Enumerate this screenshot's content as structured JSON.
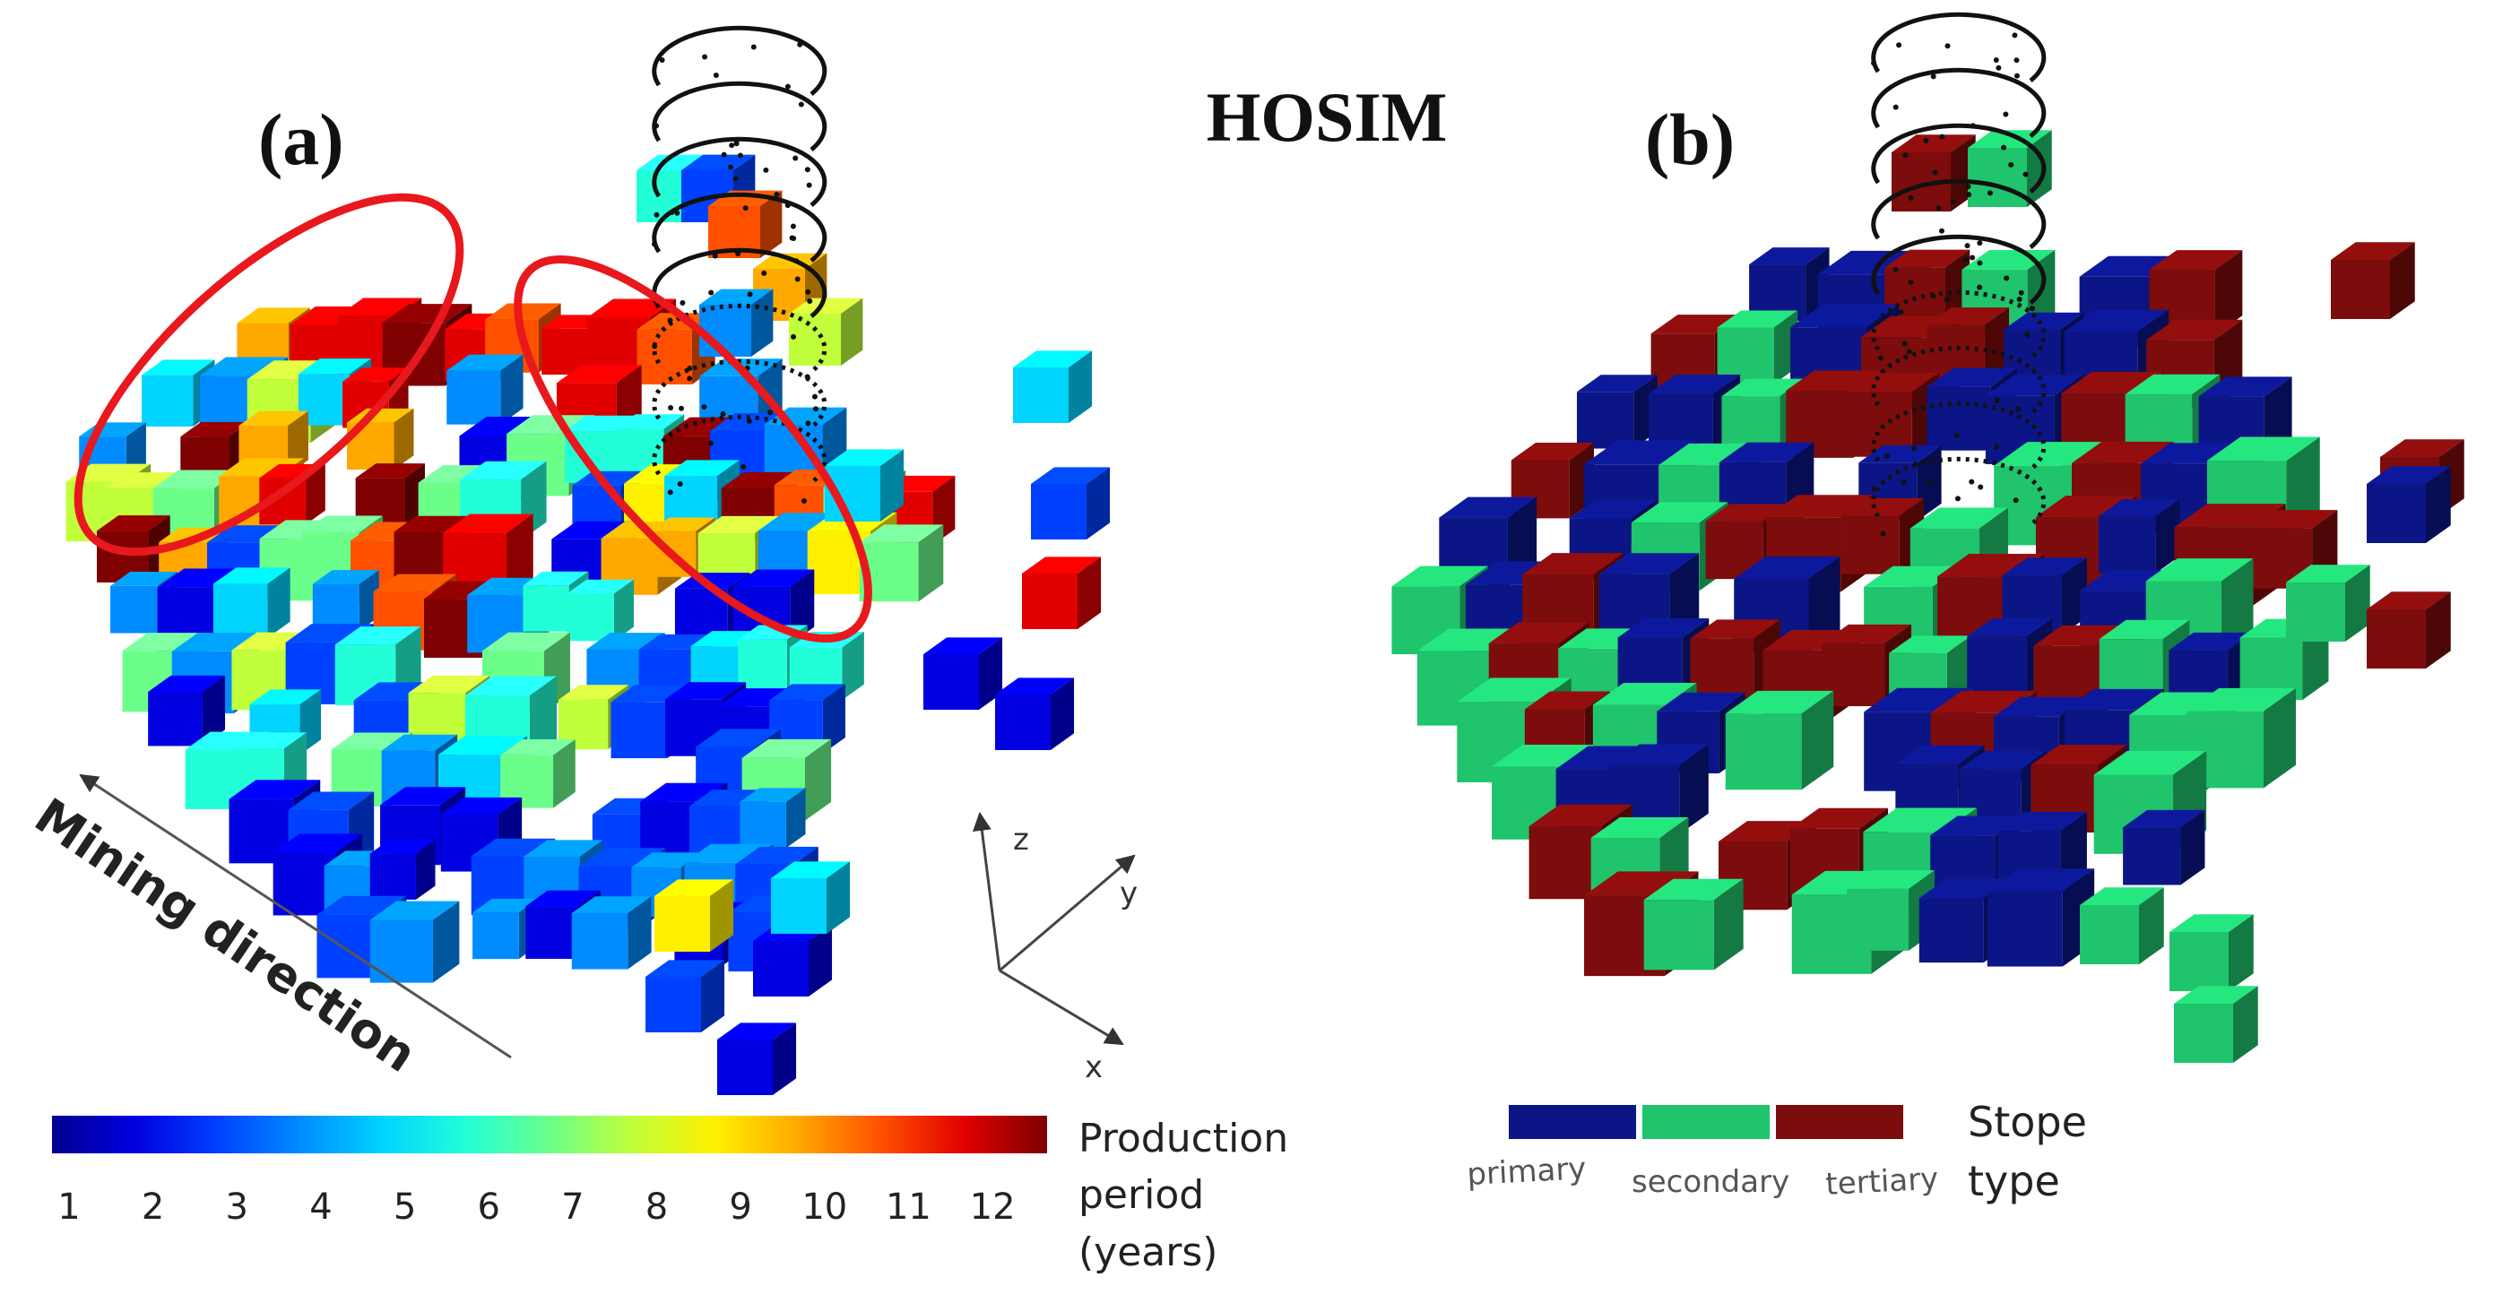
{
  "figure_title": "HOSIM",
  "panel_a": {
    "label": "(a)",
    "mining_direction_label": "Mining direction",
    "axes": {
      "x": "x",
      "y": "y",
      "z": "z"
    },
    "colorbar": {
      "title_lines": [
        "Production",
        "period",
        "(years)"
      ],
      "ticks": [
        "1",
        "2",
        "3",
        "4",
        "5",
        "6",
        "7",
        "8",
        "9",
        "10",
        "11",
        "12"
      ],
      "colors": [
        "#00008f",
        "#0000e0",
        "#0040ff",
        "#008cff",
        "#00d4ff",
        "#22ffd8",
        "#6bff8a",
        "#c0ff3a",
        "#fff000",
        "#ffa800",
        "#ff5000",
        "#e00000",
        "#7f0000"
      ]
    }
  },
  "panel_b": {
    "label": "(b)",
    "legend": {
      "title_lines": [
        "Stope",
        "type"
      ],
      "items": [
        {
          "label": "primary",
          "color": "#0b1585"
        },
        {
          "label": "secondary",
          "color": "#1fc46c"
        },
        {
          "label": "tertiary",
          "color": "#7d0c0c"
        }
      ]
    }
  }
}
